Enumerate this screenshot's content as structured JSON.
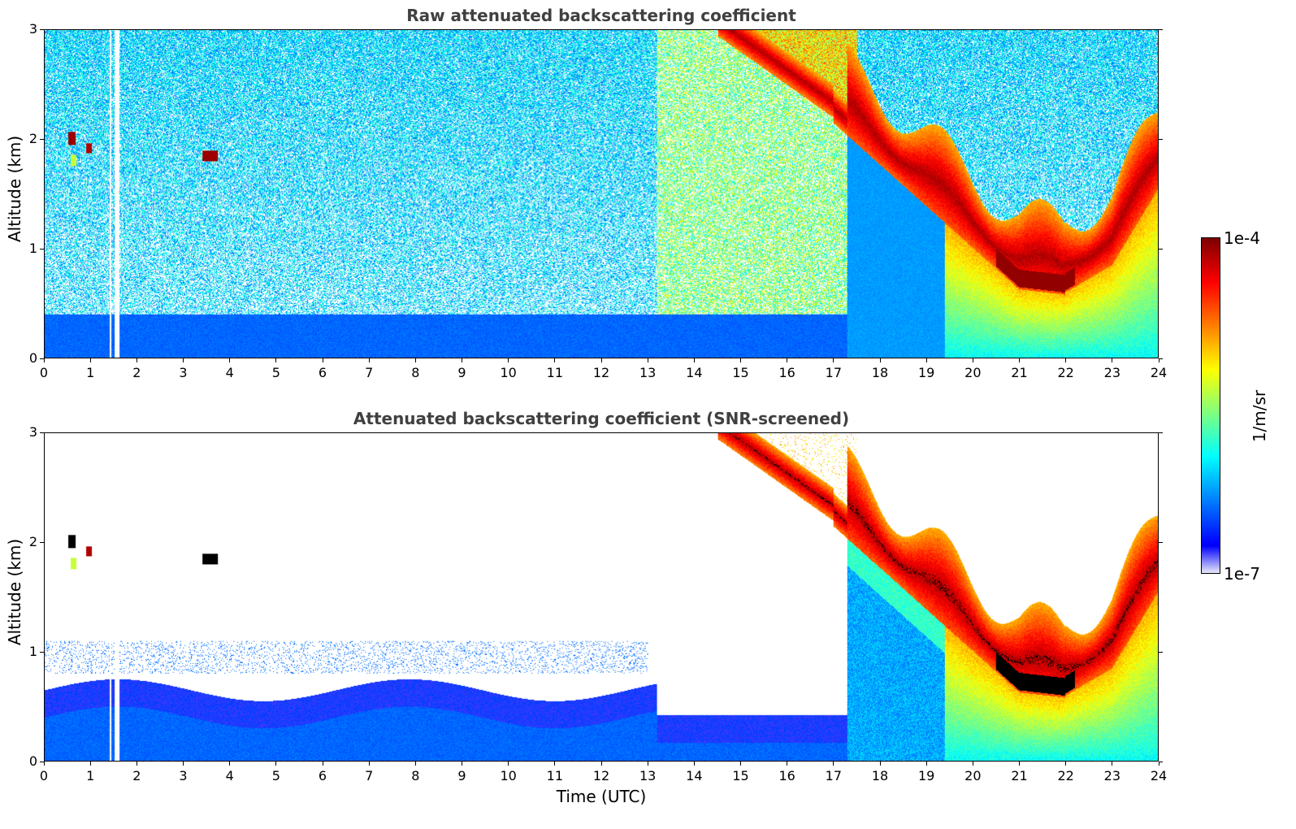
{
  "chart_data": [
    {
      "type": "heatmap",
      "title": "Raw attenuated backscattering coefficient",
      "xlabel": "",
      "ylabel": "Altitude (km)",
      "xlim": [
        0,
        24
      ],
      "ylim": [
        0,
        3
      ],
      "x_ticks": [
        "0",
        "1",
        "2",
        "3",
        "4",
        "5",
        "6",
        "7",
        "8",
        "9",
        "10",
        "11",
        "12",
        "13",
        "14",
        "15",
        "16",
        "17",
        "18",
        "19",
        "20",
        "21",
        "22",
        "23",
        "24"
      ],
      "y_ticks": [
        "0",
        "1",
        "2",
        "3"
      ],
      "colorscale": "jet (log)",
      "features": [
        {
          "desc": "near-surface aerosol layer",
          "time": [
            0,
            24
          ],
          "alt_km": [
            0,
            0.4
          ],
          "level": "low"
        },
        {
          "desc": "noisy background",
          "time": [
            0,
            13.2
          ],
          "alt_km": [
            0.4,
            3
          ],
          "level": "noise"
        },
        {
          "desc": "enhanced noise/aerosol",
          "time": [
            13.2,
            17
          ],
          "alt_km": [
            0,
            3
          ],
          "level": "moderate"
        },
        {
          "desc": "cloud layer (descending)",
          "time": [
            14.5,
            24
          ],
          "alt_km": [
            0.5,
            3
          ],
          "level": "high"
        },
        {
          "desc": "small clouds",
          "time": [
            0.5,
            1.0
          ],
          "alt_km": [
            1.8,
            2.05
          ],
          "level": "high"
        },
        {
          "desc": "small cloud",
          "time": [
            3.4,
            3.7
          ],
          "alt_km": [
            1.8,
            1.9
          ],
          "level": "high"
        }
      ],
      "gap": {
        "time": [
          1.4,
          1.6
        ]
      }
    },
    {
      "type": "heatmap",
      "title": "Attenuated backscattering coefficient (SNR-screened)",
      "xlabel": "Time (UTC)",
      "ylabel": "Altitude (km)",
      "xlim": [
        0,
        24
      ],
      "ylim": [
        0,
        3
      ],
      "x_ticks": [
        "0",
        "1",
        "2",
        "3",
        "4",
        "5",
        "6",
        "7",
        "8",
        "9",
        "10",
        "11",
        "12",
        "13",
        "14",
        "15",
        "16",
        "17",
        "18",
        "19",
        "20",
        "21",
        "22",
        "23",
        "24"
      ],
      "y_ticks": [
        "0",
        "1",
        "2",
        "3"
      ],
      "colorscale": "jet (log)",
      "features": [
        {
          "desc": "near-surface aerosol layer",
          "time": [
            0,
            13.2
          ],
          "alt_km": [
            0,
            0.7
          ],
          "level": "low"
        },
        {
          "desc": "near-surface aerosol layer",
          "time": [
            13.2,
            17.5
          ],
          "alt_km": [
            0,
            0.45
          ],
          "level": "low"
        },
        {
          "desc": "cloud layer (descending)",
          "time": [
            14.5,
            24
          ],
          "alt_km": [
            0.5,
            3
          ],
          "level": "high"
        },
        {
          "desc": "small clouds",
          "time": [
            0.5,
            1.0
          ],
          "alt_km": [
            1.8,
            2.05
          ],
          "level": "high"
        },
        {
          "desc": "small cloud",
          "time": [
            3.4,
            3.7
          ],
          "alt_km": [
            1.8,
            1.9
          ],
          "level": "high"
        }
      ],
      "gap": {
        "time": [
          1.4,
          1.6
        ]
      }
    }
  ],
  "colorbar": {
    "label": "1/m/sr",
    "max_label": "1e-4",
    "min_label": "1e-7",
    "range": [
      1e-07,
      0.0001
    ],
    "scale": "log"
  }
}
